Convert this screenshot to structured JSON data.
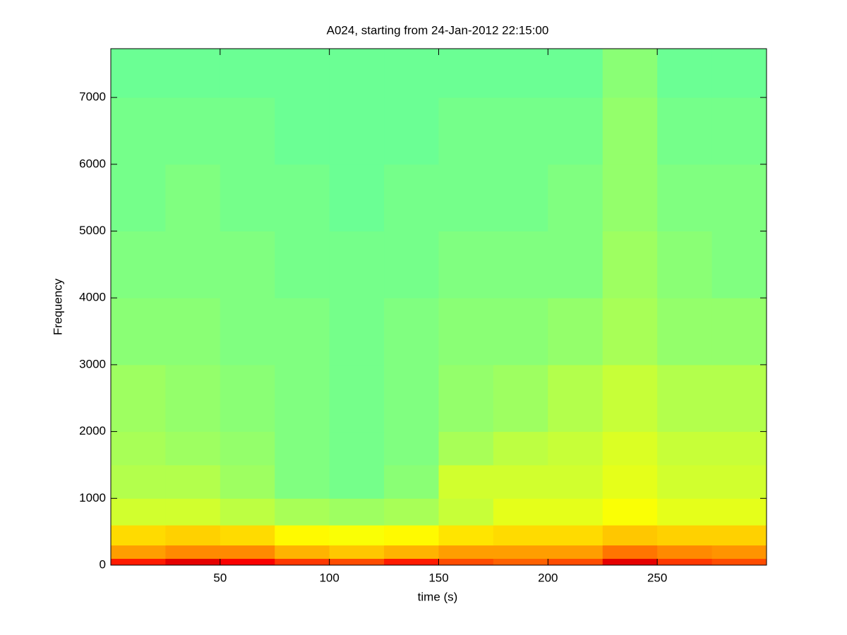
{
  "chart_data": {
    "type": "spectrogram",
    "title": "A024, starting from 24-Jan-2012 22:15:00",
    "x_label": "time (s)",
    "y_label": "Frequency",
    "colormap": "jet",
    "clim": [
      0,
      1
    ],
    "x_edges": [
      0,
      25,
      50,
      75,
      100,
      125,
      150,
      175,
      200,
      225,
      250,
      275,
      300
    ],
    "y_edges": [
      0,
      100,
      300,
      600,
      1000,
      1500,
      2000,
      3000,
      4000,
      5000,
      6000,
      7000,
      7730
    ],
    "z": [
      [
        0.85,
        0.9,
        0.88,
        0.82,
        0.8,
        0.85,
        0.8,
        0.78,
        0.8,
        0.9,
        0.82,
        0.8
      ],
      [
        0.72,
        0.74,
        0.74,
        0.7,
        0.68,
        0.7,
        0.72,
        0.72,
        0.72,
        0.76,
        0.74,
        0.73
      ],
      [
        0.66,
        0.67,
        0.66,
        0.63,
        0.62,
        0.63,
        0.65,
        0.66,
        0.66,
        0.68,
        0.67,
        0.67
      ],
      [
        0.58,
        0.58,
        0.56,
        0.54,
        0.53,
        0.54,
        0.57,
        0.6,
        0.6,
        0.62,
        0.6,
        0.6
      ],
      [
        0.55,
        0.55,
        0.53,
        0.5,
        0.49,
        0.51,
        0.58,
        0.58,
        0.58,
        0.6,
        0.58,
        0.58
      ],
      [
        0.54,
        0.53,
        0.52,
        0.5,
        0.49,
        0.5,
        0.54,
        0.56,
        0.57,
        0.59,
        0.57,
        0.57
      ],
      [
        0.53,
        0.52,
        0.51,
        0.5,
        0.49,
        0.5,
        0.52,
        0.53,
        0.55,
        0.57,
        0.55,
        0.55
      ],
      [
        0.51,
        0.51,
        0.5,
        0.5,
        0.49,
        0.5,
        0.51,
        0.51,
        0.52,
        0.54,
        0.52,
        0.52
      ],
      [
        0.5,
        0.5,
        0.5,
        0.49,
        0.49,
        0.49,
        0.5,
        0.5,
        0.5,
        0.53,
        0.51,
        0.5
      ],
      [
        0.49,
        0.5,
        0.49,
        0.49,
        0.48,
        0.49,
        0.49,
        0.49,
        0.5,
        0.52,
        0.5,
        0.5
      ],
      [
        0.49,
        0.49,
        0.49,
        0.48,
        0.48,
        0.48,
        0.49,
        0.49,
        0.49,
        0.52,
        0.49,
        0.49
      ],
      [
        0.48,
        0.48,
        0.48,
        0.48,
        0.48,
        0.48,
        0.48,
        0.48,
        0.48,
        0.51,
        0.48,
        0.48
      ]
    ],
    "xlim": [
      0,
      300
    ],
    "ylim": [
      0,
      7730
    ],
    "xticks": [
      50,
      100,
      150,
      200,
      250
    ],
    "yticks": [
      0,
      1000,
      2000,
      3000,
      4000,
      5000,
      6000,
      7000
    ]
  }
}
